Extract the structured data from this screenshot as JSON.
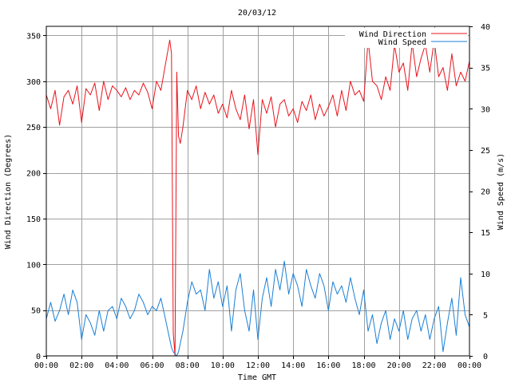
{
  "chart_data": {
    "type": "line",
    "title": "20/03/12",
    "xlabel": "Time GMT",
    "ylabel_left": "Wind Direction (Degrees)",
    "ylabel_right": "Wind Speed (m/s)",
    "x_unit": "hours",
    "xlim": [
      0,
      24
    ],
    "ylim_left": [
      0,
      360
    ],
    "ylim_right": [
      0,
      40
    ],
    "x_ticks": [
      0,
      2,
      4,
      6,
      8,
      10,
      12,
      14,
      16,
      18,
      20,
      22,
      24
    ],
    "x_tick_labels": [
      "00:00",
      "02:00",
      "04:00",
      "06:00",
      "08:00",
      "10:00",
      "12:00",
      "14:00",
      "16:00",
      "18:00",
      "20:00",
      "22:00",
      "00:00"
    ],
    "y_left_ticks": [
      0,
      50,
      100,
      150,
      200,
      250,
      300,
      350
    ],
    "y_right_ticks": [
      0,
      5,
      10,
      15,
      20,
      25,
      30,
      35,
      40
    ],
    "grid": true,
    "legend_position": "top-right",
    "series": [
      {
        "name": "Wind Direction",
        "axis": "left",
        "color": "#e8141c",
        "x": [
          0,
          0.25,
          0.5,
          0.75,
          1,
          1.25,
          1.5,
          1.75,
          2,
          2.25,
          2.5,
          2.75,
          3,
          3.25,
          3.5,
          3.75,
          4,
          4.25,
          4.5,
          4.75,
          5,
          5.25,
          5.5,
          5.75,
          6,
          6.25,
          6.5,
          6.75,
          7,
          7.1,
          7.2,
          7.3,
          7.4,
          7.5,
          7.6,
          7.75,
          8,
          8.25,
          8.5,
          8.75,
          9,
          9.25,
          9.5,
          9.75,
          10,
          10.25,
          10.5,
          10.75,
          11,
          11.25,
          11.5,
          11.75,
          12,
          12.25,
          12.5,
          12.75,
          13,
          13.25,
          13.5,
          13.75,
          14,
          14.25,
          14.5,
          14.75,
          15,
          15.25,
          15.5,
          15.75,
          16,
          16.25,
          16.5,
          16.75,
          17,
          17.25,
          17.5,
          17.75,
          18,
          18.25,
          18.5,
          18.75,
          19,
          19.25,
          19.5,
          19.75,
          20,
          20.25,
          20.5,
          20.75,
          21,
          21.25,
          21.5,
          21.75,
          22,
          22.25,
          22.5,
          22.75,
          23,
          23.25,
          23.5,
          23.75,
          24
        ],
        "values": [
          285,
          270,
          290,
          252,
          283,
          290,
          275,
          295,
          255,
          292,
          285,
          298,
          268,
          300,
          280,
          295,
          290,
          283,
          293,
          280,
          290,
          285,
          298,
          288,
          270,
          300,
          290,
          318,
          345,
          330,
          25,
          0,
          310,
          240,
          232,
          250,
          290,
          280,
          295,
          270,
          288,
          275,
          285,
          265,
          275,
          260,
          290,
          270,
          258,
          285,
          248,
          280,
          220,
          280,
          265,
          283,
          250,
          275,
          280,
          262,
          270,
          255,
          278,
          268,
          285,
          258,
          275,
          262,
          272,
          285,
          262,
          290,
          268,
          300,
          285,
          290,
          278,
          345,
          300,
          295,
          280,
          305,
          290,
          340,
          310,
          320,
          290,
          342,
          305,
          325,
          340,
          310,
          345,
          305,
          315,
          290,
          330,
          295,
          310,
          300,
          322
        ]
      },
      {
        "name": "Wind Speed",
        "axis": "right",
        "color": "#1a7fd4",
        "x": [
          0,
          0.25,
          0.5,
          0.75,
          1,
          1.25,
          1.5,
          1.75,
          2,
          2.25,
          2.5,
          2.75,
          3,
          3.25,
          3.5,
          3.75,
          4,
          4.25,
          4.5,
          4.75,
          5,
          5.25,
          5.5,
          5.75,
          6,
          6.25,
          6.5,
          6.75,
          7,
          7.1,
          7.2,
          7.3,
          7.4,
          7.5,
          7.6,
          7.75,
          8,
          8.25,
          8.5,
          8.75,
          9,
          9.25,
          9.5,
          9.75,
          10,
          10.25,
          10.5,
          10.75,
          11,
          11.25,
          11.5,
          11.75,
          12,
          12.25,
          12.5,
          12.75,
          13,
          13.25,
          13.5,
          13.75,
          14,
          14.25,
          14.5,
          14.75,
          15,
          15.25,
          15.5,
          15.75,
          16,
          16.25,
          16.5,
          16.75,
          17,
          17.25,
          17.5,
          17.75,
          18,
          18.25,
          18.5,
          18.75,
          19,
          19.25,
          19.5,
          19.75,
          20,
          20.25,
          20.5,
          20.75,
          21,
          21.25,
          21.5,
          21.75,
          22,
          22.25,
          22.5,
          22.75,
          23,
          23.25,
          23.5,
          23.75,
          24
        ],
        "values": [
          4.5,
          6.5,
          4.2,
          5.5,
          7.5,
          5.0,
          8.0,
          6.5,
          2.0,
          5.0,
          4.0,
          2.5,
          5.5,
          3.0,
          5.5,
          6.0,
          4.5,
          7.0,
          6.0,
          4.5,
          5.5,
          7.5,
          6.5,
          5.0,
          6.0,
          5.5,
          7.0,
          4.5,
          2.0,
          1.0,
          0.5,
          0.2,
          0.0,
          0.5,
          1.5,
          3.0,
          6.5,
          9.0,
          7.5,
          8.0,
          5.5,
          10.5,
          7.0,
          9.0,
          6.0,
          8.5,
          3.0,
          8.0,
          10.0,
          5.5,
          3.0,
          8.0,
          2.0,
          7.0,
          9.5,
          6.0,
          10.5,
          8.0,
          11.5,
          7.5,
          10.0,
          8.5,
          6.0,
          10.5,
          8.5,
          7.0,
          10.0,
          8.5,
          5.5,
          9.0,
          7.5,
          8.5,
          6.5,
          9.5,
          7.0,
          5.0,
          8.0,
          3.0,
          5.0,
          1.5,
          4.0,
          5.5,
          2.0,
          4.5,
          3.0,
          5.5,
          2.0,
          4.5,
          5.5,
          3.0,
          5.0,
          2.0,
          4.5,
          6.0,
          0.5,
          4.0,
          7.0,
          2.5,
          9.5,
          5.0,
          3.5
        ]
      }
    ]
  }
}
